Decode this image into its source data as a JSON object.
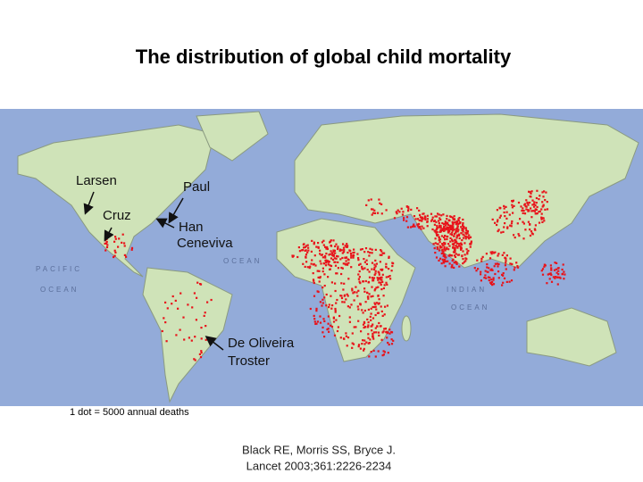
{
  "title": "The distribution of global child mortality",
  "annotations": [
    {
      "lines": [
        "Larsen"
      ]
    },
    {
      "lines": [
        "Paul"
      ]
    },
    {
      "lines": [
        "Cruz"
      ]
    },
    {
      "lines": [
        "Han",
        "Ceneviva"
      ]
    },
    {
      "lines": [
        "De Oliveira",
        "Troster"
      ]
    }
  ],
  "ocean_labels": [
    "PACIFIC",
    "OCEAN",
    "OCEAN",
    "INDIAN",
    "OCEAN"
  ],
  "legend": "1 dot = 5000 annual deaths",
  "citation": [
    "Black RE, Morris SS, Bryce J.",
    "Lancet 2003;361:2226-2234"
  ]
}
